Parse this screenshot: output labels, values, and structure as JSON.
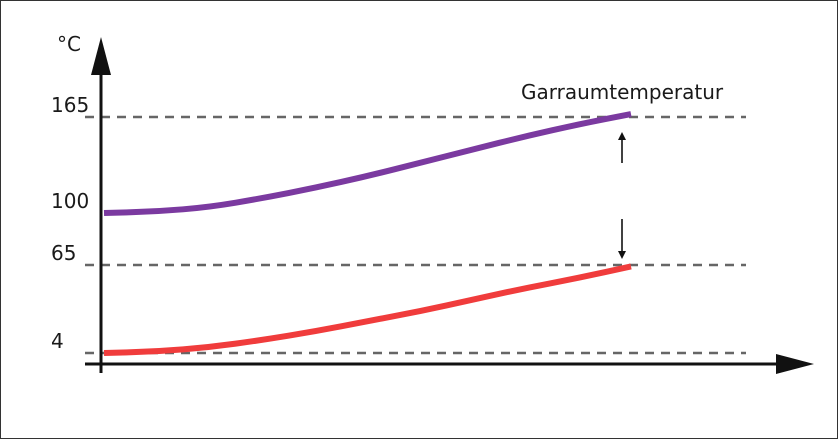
{
  "chart_data": {
    "type": "line",
    "ylabel": "°C",
    "yticks": [
      {
        "value": 165,
        "label": "165"
      },
      {
        "value": 100,
        "label": "100"
      },
      {
        "value": 65,
        "label": "65"
      },
      {
        "value": 4,
        "label": "4"
      }
    ],
    "series": [
      {
        "name": "Garraumtemperatur",
        "color": "#7b3aa0",
        "points": [
          [
            0,
            100
          ],
          [
            0.1,
            101
          ],
          [
            0.2,
            104
          ],
          [
            0.3,
            110
          ],
          [
            0.4,
            117
          ],
          [
            0.5,
            125
          ],
          [
            0.6,
            134
          ],
          [
            0.7,
            143
          ],
          [
            0.8,
            152
          ],
          [
            0.9,
            160
          ],
          [
            1.0,
            167
          ]
        ]
      },
      {
        "color": "#f03c3c",
        "points": [
          [
            0,
            4
          ],
          [
            0.1,
            5
          ],
          [
            0.2,
            8
          ],
          [
            0.3,
            13
          ],
          [
            0.4,
            19
          ],
          [
            0.5,
            26
          ],
          [
            0.6,
            33
          ],
          [
            0.7,
            41
          ],
          [
            0.8,
            49
          ],
          [
            0.9,
            56
          ],
          [
            1.0,
            64
          ]
        ]
      }
    ],
    "reference_lines": [
      165,
      65,
      4
    ],
    "grid": false,
    "legend": "top-right",
    "annotation": "Garraumtemperatur"
  }
}
